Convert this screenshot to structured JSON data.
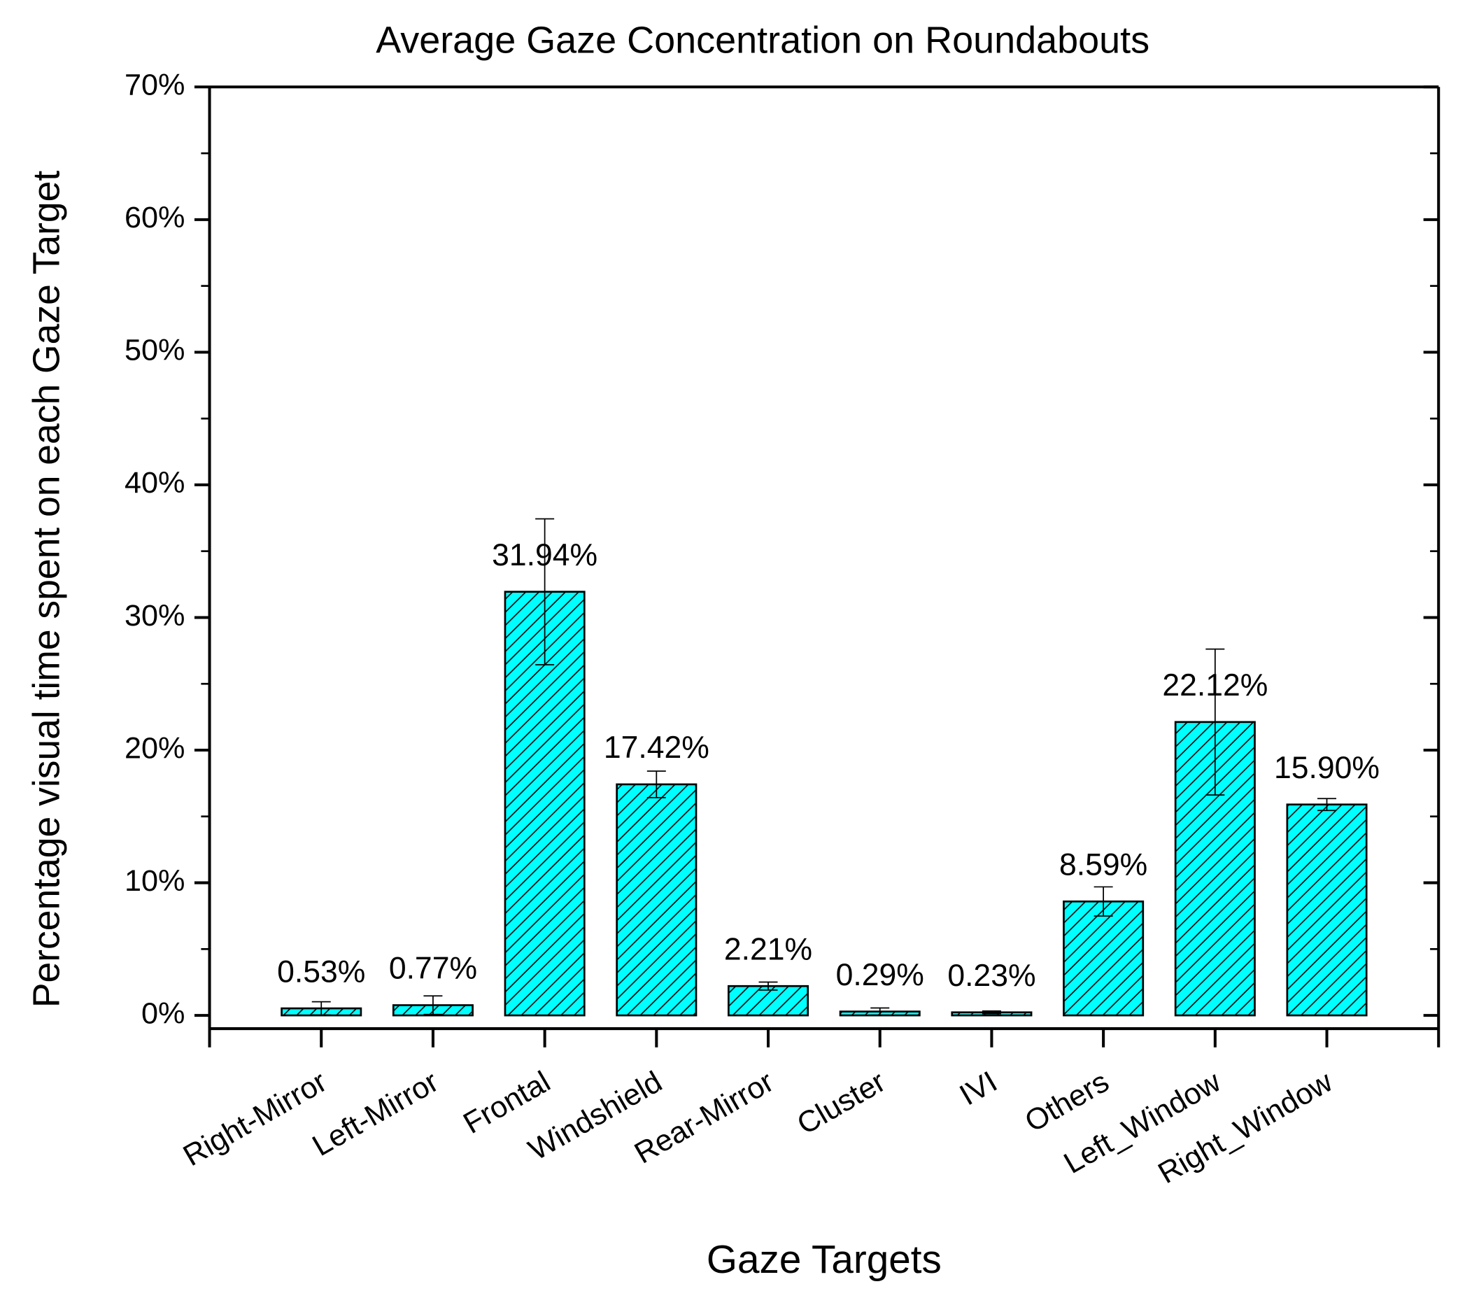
{
  "chart_data": {
    "type": "bar",
    "title": "Average Gaze Concentration on Roundabouts",
    "x_label": "Gaze Targets",
    "y_label": "Percentage visual time spent on each Gaze Target",
    "categories": [
      "Right-Mirror",
      "Left-Mirror",
      "Frontal",
      "Windshield",
      "Rear-Mirror",
      "Cluster",
      "IVI",
      "Others",
      "Left_Window",
      "Right_Window"
    ],
    "values": [
      0.53,
      0.77,
      31.94,
      17.42,
      2.21,
      0.29,
      0.23,
      8.59,
      22.12,
      15.9
    ],
    "value_labels": [
      "0.53%",
      "0.77%",
      "31.94%",
      "17.42%",
      "2.21%",
      "0.29%",
      "0.23%",
      "8.59%",
      "22.12%",
      "15.90%"
    ],
    "errors": [
      0.5,
      0.7,
      5.5,
      1.0,
      0.3,
      0.27,
      0.1,
      1.1,
      5.5,
      0.45
    ],
    "color": "#00ffff",
    "ylim": [
      -1,
      70
    ],
    "yticks": [
      {
        "value": 0,
        "label": "0%"
      },
      {
        "value": 10,
        "label": "10%"
      },
      {
        "value": 20,
        "label": "20%"
      },
      {
        "value": 30,
        "label": "30%"
      },
      {
        "value": 40,
        "label": "40%"
      },
      {
        "value": 50,
        "label": "50%"
      },
      {
        "value": 60,
        "label": "60%"
      },
      {
        "value": 70,
        "label": "70%"
      }
    ]
  }
}
